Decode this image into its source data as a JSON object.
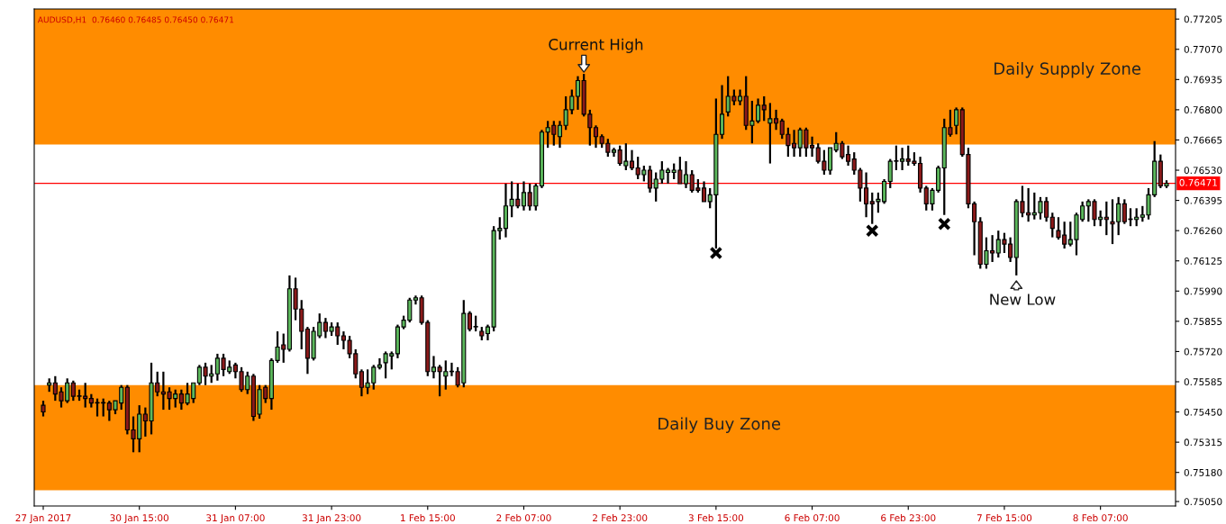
{
  "chart_data": {
    "type": "candlestick",
    "annotations": [
      "AUDUSD,H1  0.76460 0.76485 0.76450 0.76471",
      "Current High",
      "New Low"
    ],
    "categories": [
      "27 Jan 2017",
      null,
      null,
      null,
      null,
      null,
      null,
      null,
      null,
      null,
      null,
      null,
      null,
      null,
      null,
      null,
      "30 Jan 15:00",
      null,
      null,
      null,
      null,
      null,
      null,
      null,
      null,
      null,
      null,
      null,
      null,
      null,
      null,
      null,
      "31 Jan 07:00",
      null,
      null,
      null,
      null,
      null,
      null,
      null,
      null,
      null,
      null,
      null,
      null,
      null,
      null,
      null,
      "31 Jan 23:00",
      null,
      null,
      null,
      null,
      null,
      null,
      null,
      null,
      null,
      null,
      null,
      null,
      null,
      null,
      null,
      "1 Feb 15:00",
      null,
      null,
      null,
      null,
      null,
      null,
      null,
      null,
      null,
      null,
      null,
      null,
      null,
      null,
      null,
      "2 Feb 07:00",
      null,
      null,
      null,
      null,
      null,
      null,
      null,
      null,
      null,
      null,
      null,
      null,
      null,
      null,
      null,
      "2 Feb 23:00",
      null,
      null,
      null,
      null,
      null,
      null,
      null,
      null,
      null,
      null,
      null,
      null,
      null,
      null,
      null,
      "3 Feb 15:00",
      null,
      null,
      null,
      null,
      null,
      null,
      null,
      null,
      null,
      null,
      null,
      null,
      null,
      null,
      null,
      "6 Feb 07:00",
      null,
      null,
      null,
      null,
      null,
      null,
      null,
      null,
      null,
      null,
      null,
      null,
      null,
      null,
      null,
      "6 Feb 23:00",
      null,
      null,
      null,
      null,
      null,
      null,
      null,
      null,
      null,
      null,
      null,
      null,
      null,
      null,
      null,
      "7 Feb 15:00",
      null,
      null,
      null,
      null,
      null,
      null,
      null,
      null,
      null,
      null,
      null,
      null,
      null,
      null,
      null,
      "8 Feb 07:00",
      null,
      null,
      null,
      null,
      null,
      null,
      null,
      null,
      null,
      null,
      null
    ],
    "ohlc": [
      [
        0.7548,
        0.755,
        0.7543,
        0.7545
      ],
      [
        0.7557,
        0.756,
        0.7554,
        0.7558
      ],
      [
        0.7558,
        0.7561,
        0.755,
        0.7553
      ],
      [
        0.7554,
        0.7556,
        0.7547,
        0.755
      ],
      [
        0.755,
        0.756,
        0.7549,
        0.7558
      ],
      [
        0.7558,
        0.7559,
        0.755,
        0.7552
      ],
      [
        0.7552,
        0.7555,
        0.755,
        0.7552
      ],
      [
        0.7552,
        0.7558,
        0.7547,
        0.7551
      ],
      [
        0.7551,
        0.7553,
        0.7547,
        0.7549
      ],
      [
        0.7549,
        0.7551,
        0.7543,
        0.7549
      ],
      [
        0.7549,
        0.7551,
        0.7543,
        0.7549
      ],
      [
        0.7549,
        0.755,
        0.7541,
        0.7546
      ],
      [
        0.7546,
        0.755,
        0.7544,
        0.755
      ],
      [
        0.7549,
        0.7557,
        0.7546,
        0.7556
      ],
      [
        0.7556,
        0.7557,
        0.7535,
        0.7537
      ],
      [
        0.7537,
        0.7543,
        0.7527,
        0.7533
      ],
      [
        0.7533,
        0.7548,
        0.7527,
        0.7544
      ],
      [
        0.7544,
        0.7547,
        0.7534,
        0.7541
      ],
      [
        0.7541,
        0.7567,
        0.7535,
        0.7558
      ],
      [
        0.7558,
        0.7563,
        0.7552,
        0.7554
      ],
      [
        0.7554,
        0.7563,
        0.7546,
        0.7553
      ],
      [
        0.7554,
        0.7556,
        0.7546,
        0.7551
      ],
      [
        0.7551,
        0.7555,
        0.7547,
        0.7553
      ],
      [
        0.7553,
        0.7555,
        0.7546,
        0.7549
      ],
      [
        0.7549,
        0.7558,
        0.7548,
        0.7553
      ],
      [
        0.7551,
        0.7558,
        0.7549,
        0.7558
      ],
      [
        0.7558,
        0.7566,
        0.7557,
        0.7565
      ],
      [
        0.7565,
        0.7567,
        0.7557,
        0.7561
      ],
      [
        0.7561,
        0.7566,
        0.7558,
        0.7562
      ],
      [
        0.7562,
        0.7571,
        0.7559,
        0.7569
      ],
      [
        0.7569,
        0.7571,
        0.7561,
        0.7564
      ],
      [
        0.7563,
        0.7568,
        0.7562,
        0.7565
      ],
      [
        0.7566,
        0.7567,
        0.756,
        0.7563
      ],
      [
        0.7563,
        0.7565,
        0.7554,
        0.7555
      ],
      [
        0.7555,
        0.7563,
        0.7553,
        0.7561
      ],
      [
        0.7561,
        0.7562,
        0.7541,
        0.7543
      ],
      [
        0.7544,
        0.7557,
        0.7542,
        0.7555
      ],
      [
        0.7556,
        0.7557,
        0.7549,
        0.7551
      ],
      [
        0.7551,
        0.7569,
        0.7546,
        0.7568
      ],
      [
        0.7568,
        0.7581,
        0.7567,
        0.7574
      ],
      [
        0.7575,
        0.758,
        0.7567,
        0.7573
      ],
      [
        0.7573,
        0.7606,
        0.7572,
        0.76
      ],
      [
        0.76,
        0.7605,
        0.7586,
        0.7591
      ],
      [
        0.7591,
        0.7595,
        0.7573,
        0.7581
      ],
      [
        0.7582,
        0.7583,
        0.7562,
        0.7569
      ],
      [
        0.7569,
        0.7583,
        0.7568,
        0.7581
      ],
      [
        0.7579,
        0.7589,
        0.7578,
        0.7585
      ],
      [
        0.7585,
        0.7587,
        0.7578,
        0.7581
      ],
      [
        0.7581,
        0.7585,
        0.7579,
        0.7583
      ],
      [
        0.7583,
        0.7585,
        0.7575,
        0.7579
      ],
      [
        0.7579,
        0.7581,
        0.7573,
        0.7577
      ],
      [
        0.7577,
        0.7579,
        0.7569,
        0.7571
      ],
      [
        0.7571,
        0.7573,
        0.756,
        0.7562
      ],
      [
        0.7563,
        0.7564,
        0.7552,
        0.7556
      ],
      [
        0.7556,
        0.7564,
        0.7553,
        0.7558
      ],
      [
        0.7558,
        0.7566,
        0.7555,
        0.7565
      ],
      [
        0.7565,
        0.7569,
        0.7564,
        0.7566
      ],
      [
        0.7567,
        0.7572,
        0.756,
        0.7571
      ],
      [
        0.757,
        0.7572,
        0.7564,
        0.7571
      ],
      [
        0.7571,
        0.7584,
        0.7569,
        0.7583
      ],
      [
        0.7583,
        0.7588,
        0.7582,
        0.7586
      ],
      [
        0.7586,
        0.7596,
        0.7585,
        0.7595
      ],
      [
        0.7595,
        0.7597,
        0.7593,
        0.7596
      ],
      [
        0.7596,
        0.7597,
        0.7584,
        0.7585
      ],
      [
        0.7585,
        0.7586,
        0.7561,
        0.7563
      ],
      [
        0.7563,
        0.757,
        0.756,
        0.7565
      ],
      [
        0.7565,
        0.7566,
        0.7552,
        0.7563
      ],
      [
        0.7561,
        0.7568,
        0.7555,
        0.7563
      ],
      [
        0.7563,
        0.7567,
        0.7561,
        0.7563
      ],
      [
        0.7563,
        0.7565,
        0.7556,
        0.7557
      ],
      [
        0.7558,
        0.7595,
        0.7556,
        0.7589
      ],
      [
        0.7589,
        0.759,
        0.7581,
        0.7582
      ],
      [
        0.7583,
        0.7588,
        0.7581,
        0.7583
      ],
      [
        0.7581,
        0.7583,
        0.7577,
        0.7579
      ],
      [
        0.758,
        0.7584,
        0.7577,
        0.7583
      ],
      [
        0.7583,
        0.7628,
        0.7581,
        0.7626
      ],
      [
        0.7626,
        0.7632,
        0.7622,
        0.7627
      ],
      [
        0.7627,
        0.7647,
        0.7623,
        0.7637
      ],
      [
        0.7637,
        0.7648,
        0.7632,
        0.764
      ],
      [
        0.764,
        0.7647,
        0.7636,
        0.7637
      ],
      [
        0.7637,
        0.7648,
        0.7635,
        0.7643
      ],
      [
        0.7643,
        0.7647,
        0.7635,
        0.7637
      ],
      [
        0.7637,
        0.7647,
        0.7635,
        0.7646
      ],
      [
        0.7646,
        0.7671,
        0.7645,
        0.767
      ],
      [
        0.767,
        0.7675,
        0.7663,
        0.7672
      ],
      [
        0.7673,
        0.7675,
        0.7664,
        0.7669
      ],
      [
        0.7668,
        0.7675,
        0.7663,
        0.7673
      ],
      [
        0.7673,
        0.7686,
        0.7671,
        0.768
      ],
      [
        0.768,
        0.7689,
        0.7678,
        0.7686
      ],
      [
        0.7686,
        0.7695,
        0.768,
        0.7693
      ],
      [
        0.7693,
        0.7696,
        0.7677,
        0.7678
      ],
      [
        0.7678,
        0.768,
        0.7664,
        0.7672
      ],
      [
        0.7672,
        0.7673,
        0.7663,
        0.7668
      ],
      [
        0.7668,
        0.7669,
        0.7663,
        0.7665
      ],
      [
        0.7665,
        0.7667,
        0.7659,
        0.7661
      ],
      [
        0.7661,
        0.7663,
        0.7659,
        0.7662
      ],
      [
        0.7662,
        0.7664,
        0.7655,
        0.7656
      ],
      [
        0.7655,
        0.7665,
        0.7653,
        0.7657
      ],
      [
        0.7657,
        0.7662,
        0.7653,
        0.7654
      ],
      [
        0.7654,
        0.7659,
        0.7649,
        0.7651
      ],
      [
        0.7651,
        0.7655,
        0.7648,
        0.7653
      ],
      [
        0.7653,
        0.7655,
        0.7643,
        0.7645
      ],
      [
        0.7645,
        0.7652,
        0.7639,
        0.7649
      ],
      [
        0.7649,
        0.7657,
        0.7647,
        0.7653
      ],
      [
        0.7652,
        0.7654,
        0.7647,
        0.7653
      ],
      [
        0.7652,
        0.7656,
        0.7649,
        0.7653
      ],
      [
        0.7653,
        0.7659,
        0.7647,
        0.7647
      ],
      [
        0.7647,
        0.7657,
        0.7645,
        0.7651
      ],
      [
        0.7651,
        0.7653,
        0.7643,
        0.7644
      ],
      [
        0.7645,
        0.7649,
        0.7643,
        0.7644
      ],
      [
        0.7645,
        0.7648,
        0.7639,
        0.7639
      ],
      [
        0.7639,
        0.7645,
        0.7636,
        0.7642
      ],
      [
        0.7642,
        0.7685,
        0.7618,
        0.7669
      ],
      [
        0.7669,
        0.7691,
        0.7667,
        0.7678
      ],
      [
        0.7679,
        0.7695,
        0.7677,
        0.7686
      ],
      [
        0.7686,
        0.7689,
        0.7682,
        0.7684
      ],
      [
        0.7684,
        0.7689,
        0.7682,
        0.7686
      ],
      [
        0.7686,
        0.7695,
        0.7671,
        0.7673
      ],
      [
        0.7673,
        0.7684,
        0.7665,
        0.7675
      ],
      [
        0.7675,
        0.7685,
        0.7674,
        0.7682
      ],
      [
        0.7682,
        0.7686,
        0.7675,
        0.768
      ],
      [
        0.7674,
        0.7683,
        0.7656,
        0.7676
      ],
      [
        0.7676,
        0.768,
        0.7671,
        0.7674
      ],
      [
        0.7675,
        0.7676,
        0.7667,
        0.7669
      ],
      [
        0.7669,
        0.7672,
        0.7659,
        0.7664
      ],
      [
        0.7665,
        0.7671,
        0.7659,
        0.7663
      ],
      [
        0.7663,
        0.7672,
        0.7659,
        0.7671
      ],
      [
        0.7671,
        0.7672,
        0.7659,
        0.7663
      ],
      [
        0.7664,
        0.7668,
        0.7659,
        0.7663
      ],
      [
        0.7663,
        0.7665,
        0.7656,
        0.7657
      ],
      [
        0.7657,
        0.7662,
        0.7651,
        0.7653
      ],
      [
        0.7653,
        0.7663,
        0.7651,
        0.7663
      ],
      [
        0.7662,
        0.767,
        0.7661,
        0.7665
      ],
      [
        0.7665,
        0.7666,
        0.7658,
        0.7659
      ],
      [
        0.766,
        0.7664,
        0.7655,
        0.7657
      ],
      [
        0.7658,
        0.7661,
        0.7651,
        0.7653
      ],
      [
        0.7653,
        0.7654,
        0.7639,
        0.7645
      ],
      [
        0.7645,
        0.7652,
        0.7632,
        0.7638
      ],
      [
        0.7639,
        0.7643,
        0.7629,
        0.7638
      ],
      [
        0.7639,
        0.7643,
        0.7634,
        0.764
      ],
      [
        0.7639,
        0.7649,
        0.7638,
        0.7648
      ],
      [
        0.7648,
        0.7658,
        0.7645,
        0.7657
      ],
      [
        0.7657,
        0.7664,
        0.7653,
        0.7657
      ],
      [
        0.7657,
        0.7663,
        0.7653,
        0.7658
      ],
      [
        0.7658,
        0.7664,
        0.7655,
        0.7657
      ],
      [
        0.7657,
        0.7661,
        0.7655,
        0.7656
      ],
      [
        0.7656,
        0.7659,
        0.7643,
        0.7645
      ],
      [
        0.7645,
        0.7646,
        0.7635,
        0.7638
      ],
      [
        0.7638,
        0.7645,
        0.7635,
        0.7644
      ],
      [
        0.7644,
        0.7655,
        0.7643,
        0.7654
      ],
      [
        0.7654,
        0.7676,
        0.7633,
        0.7672
      ],
      [
        0.7672,
        0.768,
        0.7668,
        0.7669
      ],
      [
        0.7673,
        0.7681,
        0.7669,
        0.768
      ],
      [
        0.768,
        0.7681,
        0.7659,
        0.766
      ],
      [
        0.766,
        0.7663,
        0.7636,
        0.7638
      ],
      [
        0.7638,
        0.7639,
        0.7615,
        0.763
      ],
      [
        0.763,
        0.7632,
        0.7609,
        0.7611
      ],
      [
        0.7611,
        0.7623,
        0.7609,
        0.7617
      ],
      [
        0.7617,
        0.7624,
        0.7612,
        0.7616
      ],
      [
        0.7616,
        0.7626,
        0.7614,
        0.7622
      ],
      [
        0.7622,
        0.7625,
        0.7616,
        0.762
      ],
      [
        0.762,
        0.7623,
        0.7612,
        0.7614
      ],
      [
        0.7614,
        0.764,
        0.7606,
        0.7639
      ],
      [
        0.7639,
        0.7646,
        0.7632,
        0.7634
      ],
      [
        0.7634,
        0.7645,
        0.763,
        0.7633
      ],
      [
        0.7633,
        0.7643,
        0.7631,
        0.7634
      ],
      [
        0.7634,
        0.7641,
        0.7631,
        0.7639
      ],
      [
        0.7639,
        0.7641,
        0.763,
        0.7632
      ],
      [
        0.7632,
        0.7634,
        0.7623,
        0.7627
      ],
      [
        0.7626,
        0.7632,
        0.7622,
        0.7623
      ],
      [
        0.7624,
        0.763,
        0.7618,
        0.762
      ],
      [
        0.762,
        0.763,
        0.7619,
        0.7622
      ],
      [
        0.7622,
        0.7634,
        0.7615,
        0.7633
      ],
      [
        0.7631,
        0.7639,
        0.763,
        0.7637
      ],
      [
        0.7637,
        0.764,
        0.763,
        0.7639
      ],
      [
        0.7639,
        0.764,
        0.7628,
        0.7631
      ],
      [
        0.7631,
        0.7635,
        0.7628,
        0.7632
      ],
      [
        0.7632,
        0.7639,
        0.7624,
        0.7631
      ],
      [
        0.763,
        0.764,
        0.762,
        0.7629
      ],
      [
        0.763,
        0.7641,
        0.7624,
        0.7638
      ],
      [
        0.7638,
        0.764,
        0.7629,
        0.763
      ],
      [
        0.7631,
        0.7636,
        0.7628,
        0.7631
      ],
      [
        0.7631,
        0.7636,
        0.7628,
        0.7632
      ],
      [
        0.7632,
        0.7637,
        0.763,
        0.7633
      ],
      [
        0.7633,
        0.7645,
        0.7631,
        0.7642
      ],
      [
        0.7642,
        0.7666,
        0.7641,
        0.7657
      ],
      [
        0.7657,
        0.766,
        0.7645,
        0.7646
      ],
      [
        0.7646,
        0.76485,
        0.7645,
        0.76471
      ]
    ],
    "colors": [
      "#8b1a1a",
      "#5cb85c",
      "#8b1a1a",
      "#8b1a1a",
      "#5cb85c",
      "#8b1a1a",
      "#5cb85c",
      "#8b1a1a",
      "#8b1a1a",
      "#5cb85c",
      "#5cb85c",
      "#8b1a1a",
      "#5cb85c",
      "#5cb85c",
      "#8b1a1a",
      "#8b1a1a",
      "#5cb85c",
      "#8b1a1a",
      "#5cb85c",
      "#8b1a1a",
      "#8b1a1a",
      "#8b1a1a",
      "#5cb85c",
      "#8b1a1a",
      "#5cb85c",
      "#5cb85c",
      "#5cb85c",
      "#8b1a1a",
      "#5cb85c",
      "#5cb85c",
      "#8b1a1a",
      "#5cb85c",
      "#8b1a1a",
      "#8b1a1a",
      "#5cb85c",
      "#8b1a1a",
      "#5cb85c",
      "#8b1a1a",
      "#5cb85c",
      "#5cb85c",
      "#8b1a1a",
      "#5cb85c",
      "#8b1a1a",
      "#8b1a1a",
      "#8b1a1a",
      "#5cb85c",
      "#5cb85c",
      "#8b1a1a",
      "#5cb85c",
      "#8b1a1a",
      "#8b1a1a",
      "#8b1a1a",
      "#8b1a1a",
      "#8b1a1a",
      "#5cb85c",
      "#5cb85c",
      "#5cb85c",
      "#5cb85c",
      "#5cb85c",
      "#5cb85c",
      "#5cb85c",
      "#5cb85c",
      "#5cb85c",
      "#8b1a1a",
      "#8b1a1a",
      "#5cb85c",
      "#8b1a1a",
      "#5cb85c",
      "#5cb85c",
      "#8b1a1a",
      "#5cb85c",
      "#8b1a1a",
      "#5cb85c",
      "#8b1a1a",
      "#5cb85c",
      "#5cb85c",
      "#5cb85c",
      "#5cb85c",
      "#5cb85c",
      "#8b1a1a",
      "#5cb85c",
      "#8b1a1a",
      "#5cb85c",
      "#5cb85c",
      "#5cb85c",
      "#8b1a1a",
      "#5cb85c",
      "#5cb85c",
      "#5cb85c",
      "#5cb85c",
      "#8b1a1a",
      "#8b1a1a",
      "#8b1a1a",
      "#8b1a1a",
      "#8b1a1a",
      "#5cb85c",
      "#8b1a1a",
      "#5cb85c",
      "#8b1a1a",
      "#8b1a1a",
      "#5cb85c",
      "#8b1a1a",
      "#5cb85c",
      "#5cb85c",
      "#5cb85c",
      "#5cb85c",
      "#8b1a1a",
      "#5cb85c",
      "#8b1a1a",
      "#8b1a1a",
      "#8b1a1a",
      "#5cb85c",
      "#5cb85c",
      "#5cb85c",
      "#5cb85c",
      "#8b1a1a",
      "#5cb85c",
      "#8b1a1a",
      "#5cb85c",
      "#5cb85c",
      "#8b1a1a",
      "#5cb85c",
      "#8b1a1a",
      "#8b1a1a",
      "#8b1a1a",
      "#8b1a1a",
      "#5cb85c",
      "#8b1a1a",
      "#8b1a1a",
      "#8b1a1a",
      "#8b1a1a",
      "#5cb85c",
      "#5cb85c",
      "#8b1a1a",
      "#8b1a1a",
      "#8b1a1a",
      "#8b1a1a",
      "#8b1a1a",
      "#8b1a1a",
      "#5cb85c",
      "#5cb85c",
      "#5cb85c",
      "#5cb85c",
      "#5cb85c",
      "#8b1a1a",
      "#8b1a1a",
      "#8b1a1a",
      "#8b1a1a",
      "#5cb85c",
      "#5cb85c",
      "#5cb85c",
      "#8b1a1a",
      "#5cb85c",
      "#8b1a1a",
      "#8b1a1a",
      "#8b1a1a",
      "#8b1a1a",
      "#5cb85c",
      "#8b1a1a",
      "#5cb85c",
      "#8b1a1a",
      "#8b1a1a",
      "#5cb85c",
      "#8b1a1a",
      "#8b1a1a",
      "#5cb85c",
      "#5cb85c",
      "#8b1a1a",
      "#8b1a1a",
      "#8b1a1a",
      "#8b1a1a",
      "#5cb85c",
      "#5cb85c",
      "#5cb85c",
      "#5cb85c",
      "#8b1a1a",
      "#5cb85c",
      "#8b1a1a",
      "#8b1a1a",
      "#5cb85c",
      "#8b1a1a",
      "#5cb85c",
      "#5cb85c",
      "#5cb85c",
      "#5cb85c",
      "#5cb85c",
      "#8b1a1a",
      "#5cb85c"
    ],
    "marker": "cross",
    "series": [
      {
        "type": "scatter",
        "color": "#000000",
        "values": [
          null,
          null,
          null,
          null,
          null,
          null,
          null,
          null,
          null,
          null,
          null,
          null,
          null,
          null,
          null,
          null,
          null,
          null,
          null,
          null,
          null,
          null,
          null,
          null,
          null,
          null,
          null,
          null,
          null,
          null,
          null,
          null,
          null,
          null,
          null,
          null,
          null,
          null,
          null,
          null,
          null,
          null,
          null,
          null,
          null,
          null,
          null,
          null,
          null,
          null,
          null,
          null,
          null,
          null,
          null,
          null,
          null,
          null,
          null,
          null,
          null,
          null,
          null,
          null,
          null,
          null,
          null,
          null,
          null,
          null,
          null,
          null,
          null,
          null,
          null,
          null,
          null,
          null,
          null,
          null,
          null,
          null,
          null,
          null,
          null,
          null,
          null,
          null,
          null,
          null,
          null,
          null,
          null,
          null,
          null,
          null,
          null,
          null,
          null,
          null,
          null,
          null,
          null,
          null,
          null,
          null,
          null,
          null,
          null,
          null,
          null,
          null,
          0.7616,
          null,
          null,
          null,
          null,
          null,
          null,
          null,
          null,
          null,
          null,
          null,
          null,
          null,
          null,
          null,
          null,
          null,
          null,
          null,
          null,
          null,
          null,
          null,
          null,
          null,
          0.7626,
          null,
          null,
          null,
          null,
          null,
          null,
          null,
          null,
          null,
          null,
          null,
          0.7629,
          null,
          null,
          null,
          null,
          null,
          null,
          null,
          null,
          null,
          null,
          null,
          null,
          null,
          null,
          null,
          null,
          null,
          null,
          null,
          null,
          null,
          null,
          null,
          null,
          null,
          null,
          null,
          null,
          null,
          null,
          null,
          null,
          null,
          null,
          null,
          null,
          null
        ]
      }
    ],
    "ylim": [
      0.7503,
      0.7725
    ],
    "yticks": [
      0.77205,
      {
        "value": 0.7707,
        "label": "0.77070"
      },
      0.76935,
      {
        "value": 0.768,
        "label": "0.76800"
      },
      0.76665,
      {
        "value": 0.7653,
        "label": "0.76530"
      },
      0.76395,
      {
        "value": 0.7626,
        "label": "0.76260"
      },
      0.76125,
      {
        "value": 0.7599,
        "label": "0.75990"
      },
      0.75855,
      {
        "value": 0.7572,
        "label": "0.75720"
      },
      0.75585,
      {
        "value": 0.7545,
        "label": "0.75450"
      },
      0.75315,
      {
        "value": 0.7518,
        "label": "0.75180"
      },
      {
        "value": 0.7505,
        "label": "0.75050"
      }
    ],
    "bands": [
      {
        "axis": "y",
        "from": 0.76645,
        "to": 0.7725,
        "label": "Daily Supply Zone",
        "color": "#ff8c00"
      },
      {
        "axis": "y",
        "from": 0.751,
        "to": 0.7557,
        "label": "Daily Buy Zone",
        "color": "#ff8c00"
      }
    ],
    "ref_lines": [
      {
        "axis": "y",
        "value": 0.76471,
        "label": "0.76471",
        "color": "#ff0000"
      }
    ],
    "grid": false,
    "legend": false
  }
}
